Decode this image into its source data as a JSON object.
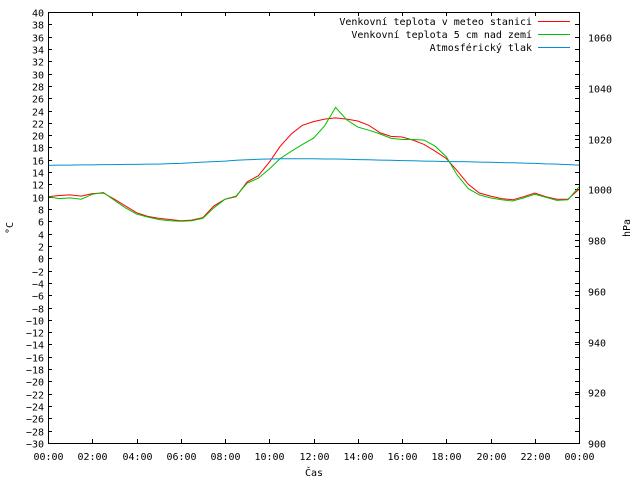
{
  "chart_data": {
    "type": "line",
    "title": "",
    "xlabel": "Čas",
    "ylabel": "°C",
    "y2label": "hPa",
    "xlim": [
      0,
      24
    ],
    "ylim": [
      -30,
      40
    ],
    "y2lim": [
      900,
      1070
    ],
    "grid": false,
    "legend": "top-right",
    "x_ticks": [
      "00:00",
      "02:00",
      "04:00",
      "06:00",
      "08:00",
      "10:00",
      "12:00",
      "14:00",
      "16:00",
      "18:00",
      "20:00",
      "22:00",
      "00:00"
    ],
    "y_ticks": [
      40,
      38,
      36,
      34,
      32,
      30,
      28,
      26,
      24,
      22,
      20,
      18,
      16,
      14,
      12,
      10,
      8,
      6,
      4,
      2,
      0,
      -2,
      -4,
      -6,
      -8,
      -10,
      -12,
      -14,
      -16,
      -18,
      -20,
      -22,
      -24,
      -26,
      -28,
      -30
    ],
    "y2_ticks": [
      1060,
      1040,
      1020,
      1000,
      980,
      960,
      940,
      920,
      900
    ],
    "x": [
      0,
      0.5,
      1,
      1.5,
      2,
      2.5,
      3,
      3.5,
      4,
      4.5,
      5,
      5.5,
      6,
      6.5,
      7,
      7.5,
      8,
      8.5,
      9,
      9.5,
      10,
      10.5,
      11,
      11.5,
      12,
      12.5,
      13,
      13.5,
      14,
      14.5,
      15,
      15.5,
      16,
      16.5,
      17,
      17.5,
      18,
      18.5,
      19,
      19.5,
      20,
      20.5,
      21,
      21.5,
      22,
      22.5,
      23,
      23.5,
      24
    ],
    "series": [
      {
        "name": "Venkovní teplota v meteo stanici",
        "color": "#ff0000",
        "axis": "left",
        "values": [
          10.0,
          10.2,
          10.3,
          10.1,
          10.5,
          10.6,
          9.6,
          8.5,
          7.4,
          6.8,
          6.5,
          6.3,
          6.1,
          6.2,
          6.6,
          8.5,
          9.6,
          10.0,
          12.4,
          13.4,
          15.6,
          18.2,
          20.2,
          21.6,
          22.2,
          22.6,
          22.8,
          22.6,
          22.3,
          21.6,
          20.4,
          19.8,
          19.7,
          19.2,
          18.5,
          17.4,
          16.2,
          14.2,
          12.0,
          10.6,
          10.1,
          9.7,
          9.5,
          10.0,
          10.6,
          10.0,
          9.6,
          9.6,
          11.2
        ]
      },
      {
        "name": "Venkovní teplota 5 cm nad zemí",
        "color": "#00c000",
        "axis": "left",
        "values": [
          10.0,
          9.7,
          9.8,
          9.6,
          10.4,
          10.7,
          9.4,
          8.2,
          7.2,
          6.7,
          6.3,
          6.1,
          6.0,
          6.1,
          6.5,
          8.2,
          9.6,
          10.1,
          12.2,
          13.0,
          14.5,
          16.2,
          17.4,
          18.5,
          19.5,
          21.5,
          24.5,
          22.5,
          21.3,
          20.8,
          20.2,
          19.5,
          19.3,
          19.3,
          19.2,
          18.2,
          16.5,
          13.5,
          11.3,
          10.3,
          9.8,
          9.5,
          9.3,
          9.8,
          10.4,
          9.9,
          9.4,
          9.5,
          11.6
        ]
      },
      {
        "name": "Atmosférický tlak",
        "color": "#0090d0",
        "axis": "right",
        "values": [
          1009.5,
          1009.6,
          1009.6,
          1009.7,
          1009.7,
          1009.8,
          1009.8,
          1009.9,
          1009.9,
          1010.0,
          1010.0,
          1010.2,
          1010.3,
          1010.5,
          1010.8,
          1011.0,
          1011.2,
          1011.5,
          1011.7,
          1011.9,
          1012.0,
          1012.1,
          1012.1,
          1012.1,
          1012.1,
          1012.0,
          1012.0,
          1011.9,
          1011.8,
          1011.7,
          1011.6,
          1011.5,
          1011.4,
          1011.3,
          1011.2,
          1011.1,
          1011.0,
          1011.0,
          1010.9,
          1010.8,
          1010.7,
          1010.6,
          1010.5,
          1010.4,
          1010.3,
          1010.1,
          1010.0,
          1009.8,
          1009.6
        ]
      }
    ]
  }
}
